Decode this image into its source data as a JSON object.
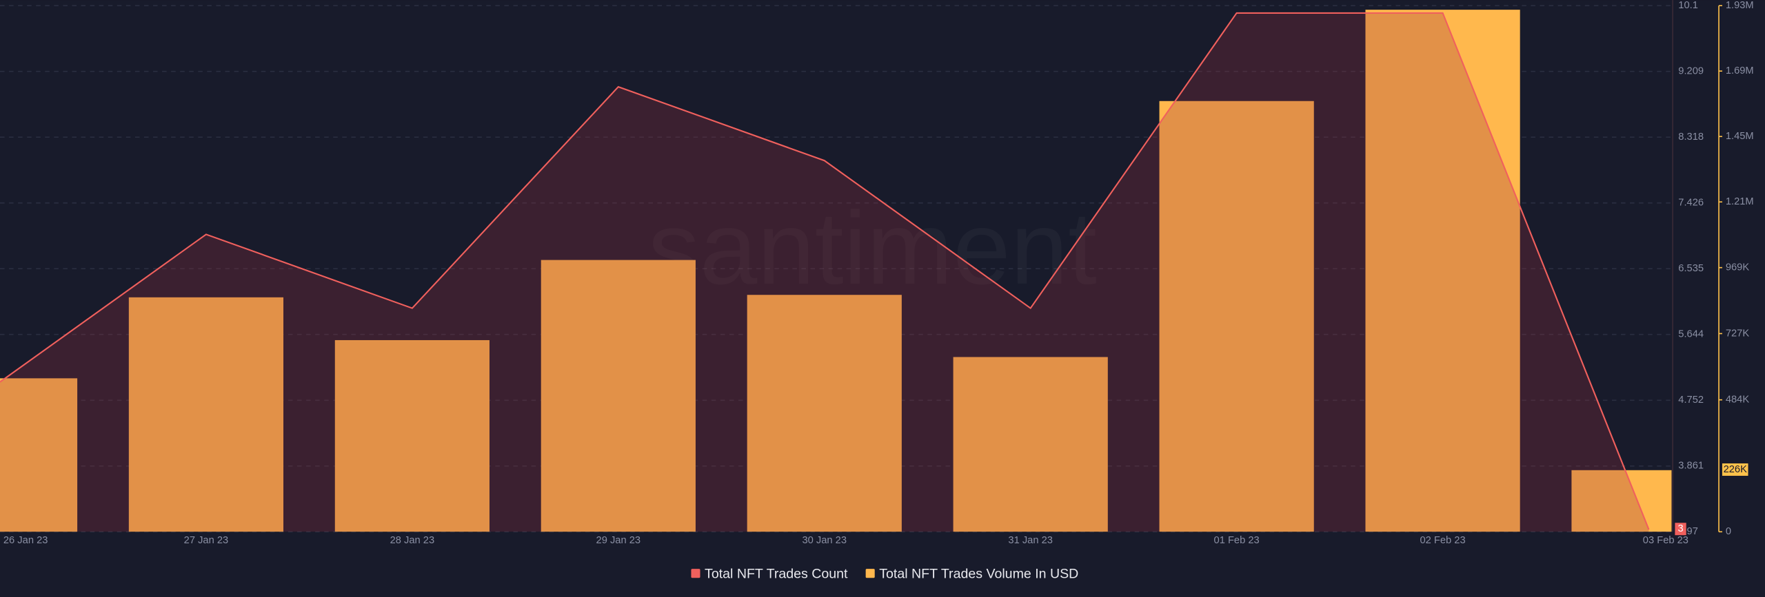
{
  "chart_data": {
    "type": "combo",
    "watermark": "santiment",
    "categories": [
      "26 Jan 23",
      "27 Jan 23",
      "28 Jan 23",
      "29 Jan 23",
      "30 Jan 23",
      "31 Jan 23",
      "01 Feb 23",
      "02 Feb 23",
      "03 Feb 23"
    ],
    "series": [
      {
        "name": "Total NFT Trades Count",
        "type": "line",
        "color": "#f0605d",
        "axis": "y",
        "values": [
          5,
          7,
          6,
          9,
          8,
          6,
          10,
          10,
          3
        ]
      },
      {
        "name": "Total NFT Trades Volume In USD",
        "type": "bar",
        "color": "#ffb84d",
        "axis": "y2",
        "values": [
          563000,
          860000,
          703000,
          997000,
          869000,
          641000,
          1580000,
          1915000,
          226000
        ],
        "value_labels": [
          null,
          null,
          null,
          null,
          null,
          null,
          null,
          null,
          "226K"
        ]
      }
    ],
    "ylim": [
      2.97,
      10.1
    ],
    "yticks": [
      2.97,
      3.861,
      4.752,
      5.644,
      6.535,
      7.426,
      8.318,
      9.209,
      10.1
    ],
    "y2lim": [
      0,
      1930000
    ],
    "y2ticks": [
      0,
      {
        "value": 484000,
        "label": "484K"
      },
      {
        "value": 727000,
        "label": "727K"
      },
      {
        "value": 969000,
        "label": "969K"
      },
      {
        "value": 1210000,
        "label": "1.21M"
      },
      {
        "value": 1450000,
        "label": "1.45M"
      },
      {
        "value": 1690000,
        "label": "1.69M"
      },
      {
        "value": 1930000,
        "label": "1.93M"
      }
    ],
    "grid": true,
    "legend": "bottom"
  }
}
